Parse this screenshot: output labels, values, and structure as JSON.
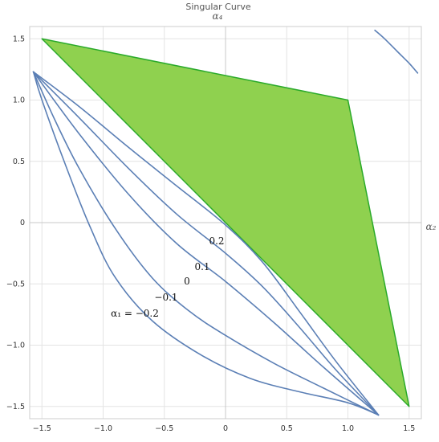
{
  "chart_data": {
    "type": "line",
    "title": "Singular Curve",
    "xlabel": "α₂",
    "ylabel": "α₄",
    "xlim": [
      -1.6,
      1.6
    ],
    "ylim": [
      -1.6,
      1.6
    ],
    "grid": true,
    "x_ticks": [
      "−1.5",
      "−1.0",
      "−0.5",
      "0",
      "0.5",
      "1.0",
      "1.5"
    ],
    "y_ticks": [
      "1.5",
      "1.0",
      "0.5",
      "0",
      "−0.5",
      "−1.0",
      "−1.5"
    ],
    "colors": {
      "curve": "#5b7fb5",
      "region_fill": "#8fd14f",
      "region_edge": "#2aaa2a",
      "grid": "#e4e4e4",
      "axis": "#c8c8c8"
    },
    "region": {
      "vertices": [
        [
          -1.5,
          1.5
        ],
        [
          1.0,
          1.0
        ],
        [
          1.5,
          -1.5
        ],
        [
          0.0,
          0.0
        ]
      ]
    },
    "series": [
      {
        "label": "α₁ = −0.2",
        "points": [
          [
            -1.57,
            1.23
          ],
          [
            -1.5,
            1.0
          ],
          [
            -1.3,
            0.45
          ],
          [
            -1.1,
            -0.05
          ],
          [
            -0.9,
            -0.45
          ],
          [
            -0.6,
            -0.8
          ],
          [
            -0.2,
            -1.08
          ],
          [
            0.2,
            -1.27
          ],
          [
            0.6,
            -1.38
          ],
          [
            1.0,
            -1.47
          ],
          [
            1.25,
            -1.57
          ]
        ]
      },
      {
        "label": "−0.1",
        "points": [
          [
            -1.57,
            1.23
          ],
          [
            -1.4,
            0.85
          ],
          [
            -1.2,
            0.45
          ],
          [
            -0.9,
            -0.05
          ],
          [
            -0.6,
            -0.45
          ],
          [
            -0.3,
            -0.72
          ],
          [
            0.0,
            -0.92
          ],
          [
            0.4,
            -1.15
          ],
          [
            0.8,
            -1.35
          ],
          [
            1.25,
            -1.57
          ]
        ]
      },
      {
        "label": "0",
        "points": [
          [
            -1.57,
            1.23
          ],
          [
            -1.2,
            0.73
          ],
          [
            -0.8,
            0.24
          ],
          [
            -0.4,
            -0.17
          ],
          [
            0.0,
            -0.48
          ],
          [
            0.4,
            -0.82
          ],
          [
            0.8,
            -1.18
          ],
          [
            1.25,
            -1.57
          ]
        ]
      },
      {
        "label": "0.1",
        "points": [
          [
            -1.57,
            1.23
          ],
          [
            -1.2,
            0.86
          ],
          [
            -0.8,
            0.45
          ],
          [
            -0.4,
            0.07
          ],
          [
            0.0,
            -0.25
          ],
          [
            0.3,
            -0.52
          ],
          [
            0.6,
            -0.85
          ],
          [
            0.9,
            -1.2
          ],
          [
            1.25,
            -1.57
          ]
        ]
      },
      {
        "label": "0.2",
        "points": [
          [
            -1.57,
            1.23
          ],
          [
            -1.2,
            0.95
          ],
          [
            -0.8,
            0.62
          ],
          [
            -0.4,
            0.3
          ],
          [
            0.0,
            -0.02
          ],
          [
            0.3,
            -0.32
          ],
          [
            0.6,
            -0.72
          ],
          [
            0.9,
            -1.13
          ],
          [
            1.25,
            -1.57
          ]
        ]
      },
      {
        "label": "",
        "points": [
          [
            1.22,
            1.57
          ],
          [
            1.3,
            1.5
          ],
          [
            1.4,
            1.4
          ],
          [
            1.5,
            1.3
          ],
          [
            1.57,
            1.22
          ]
        ]
      }
    ]
  }
}
